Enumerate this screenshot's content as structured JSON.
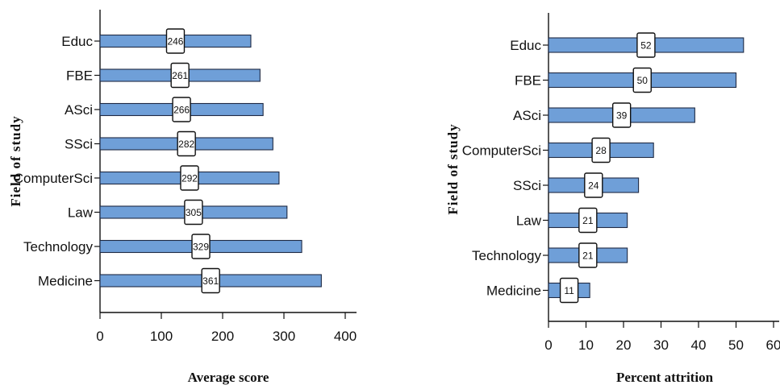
{
  "chart_data": [
    {
      "type": "bar",
      "orientation": "horizontal",
      "title": "",
      "xlabel": "Average score",
      "ylabel": "Field of study",
      "categories": [
        "Educ",
        "FBE",
        "ASci",
        "SSci",
        "ComputerSci",
        "Law",
        "Technology",
        "Medicine"
      ],
      "values": [
        246,
        261,
        266,
        282,
        292,
        305,
        329,
        361
      ],
      "data_labels": [
        "246",
        "261",
        "266",
        "282",
        "292",
        "305",
        "329",
        "361"
      ],
      "xlim": [
        0,
        400
      ],
      "xticks": [
        "0",
        "100",
        "200",
        "300",
        "400"
      ],
      "grid": false,
      "bar_color": "#6f9fd8"
    },
    {
      "type": "bar",
      "orientation": "horizontal",
      "title": "",
      "xlabel": "Percent attrition",
      "ylabel": "Field of study",
      "categories": [
        "Educ",
        "FBE",
        "ASci",
        "ComputerSci",
        "SSci",
        "Law",
        "Technology",
        "Medicine"
      ],
      "values": [
        52,
        50,
        39,
        28,
        24,
        21,
        21,
        11
      ],
      "data_labels": [
        "52",
        "50",
        "39",
        "28",
        "24",
        "21",
        "21",
        "11"
      ],
      "xlim": [
        0,
        60
      ],
      "xticks": [
        "0",
        "10",
        "20",
        "30",
        "40",
        "50",
        "60"
      ],
      "grid": false,
      "bar_color": "#6f9fd8"
    }
  ]
}
